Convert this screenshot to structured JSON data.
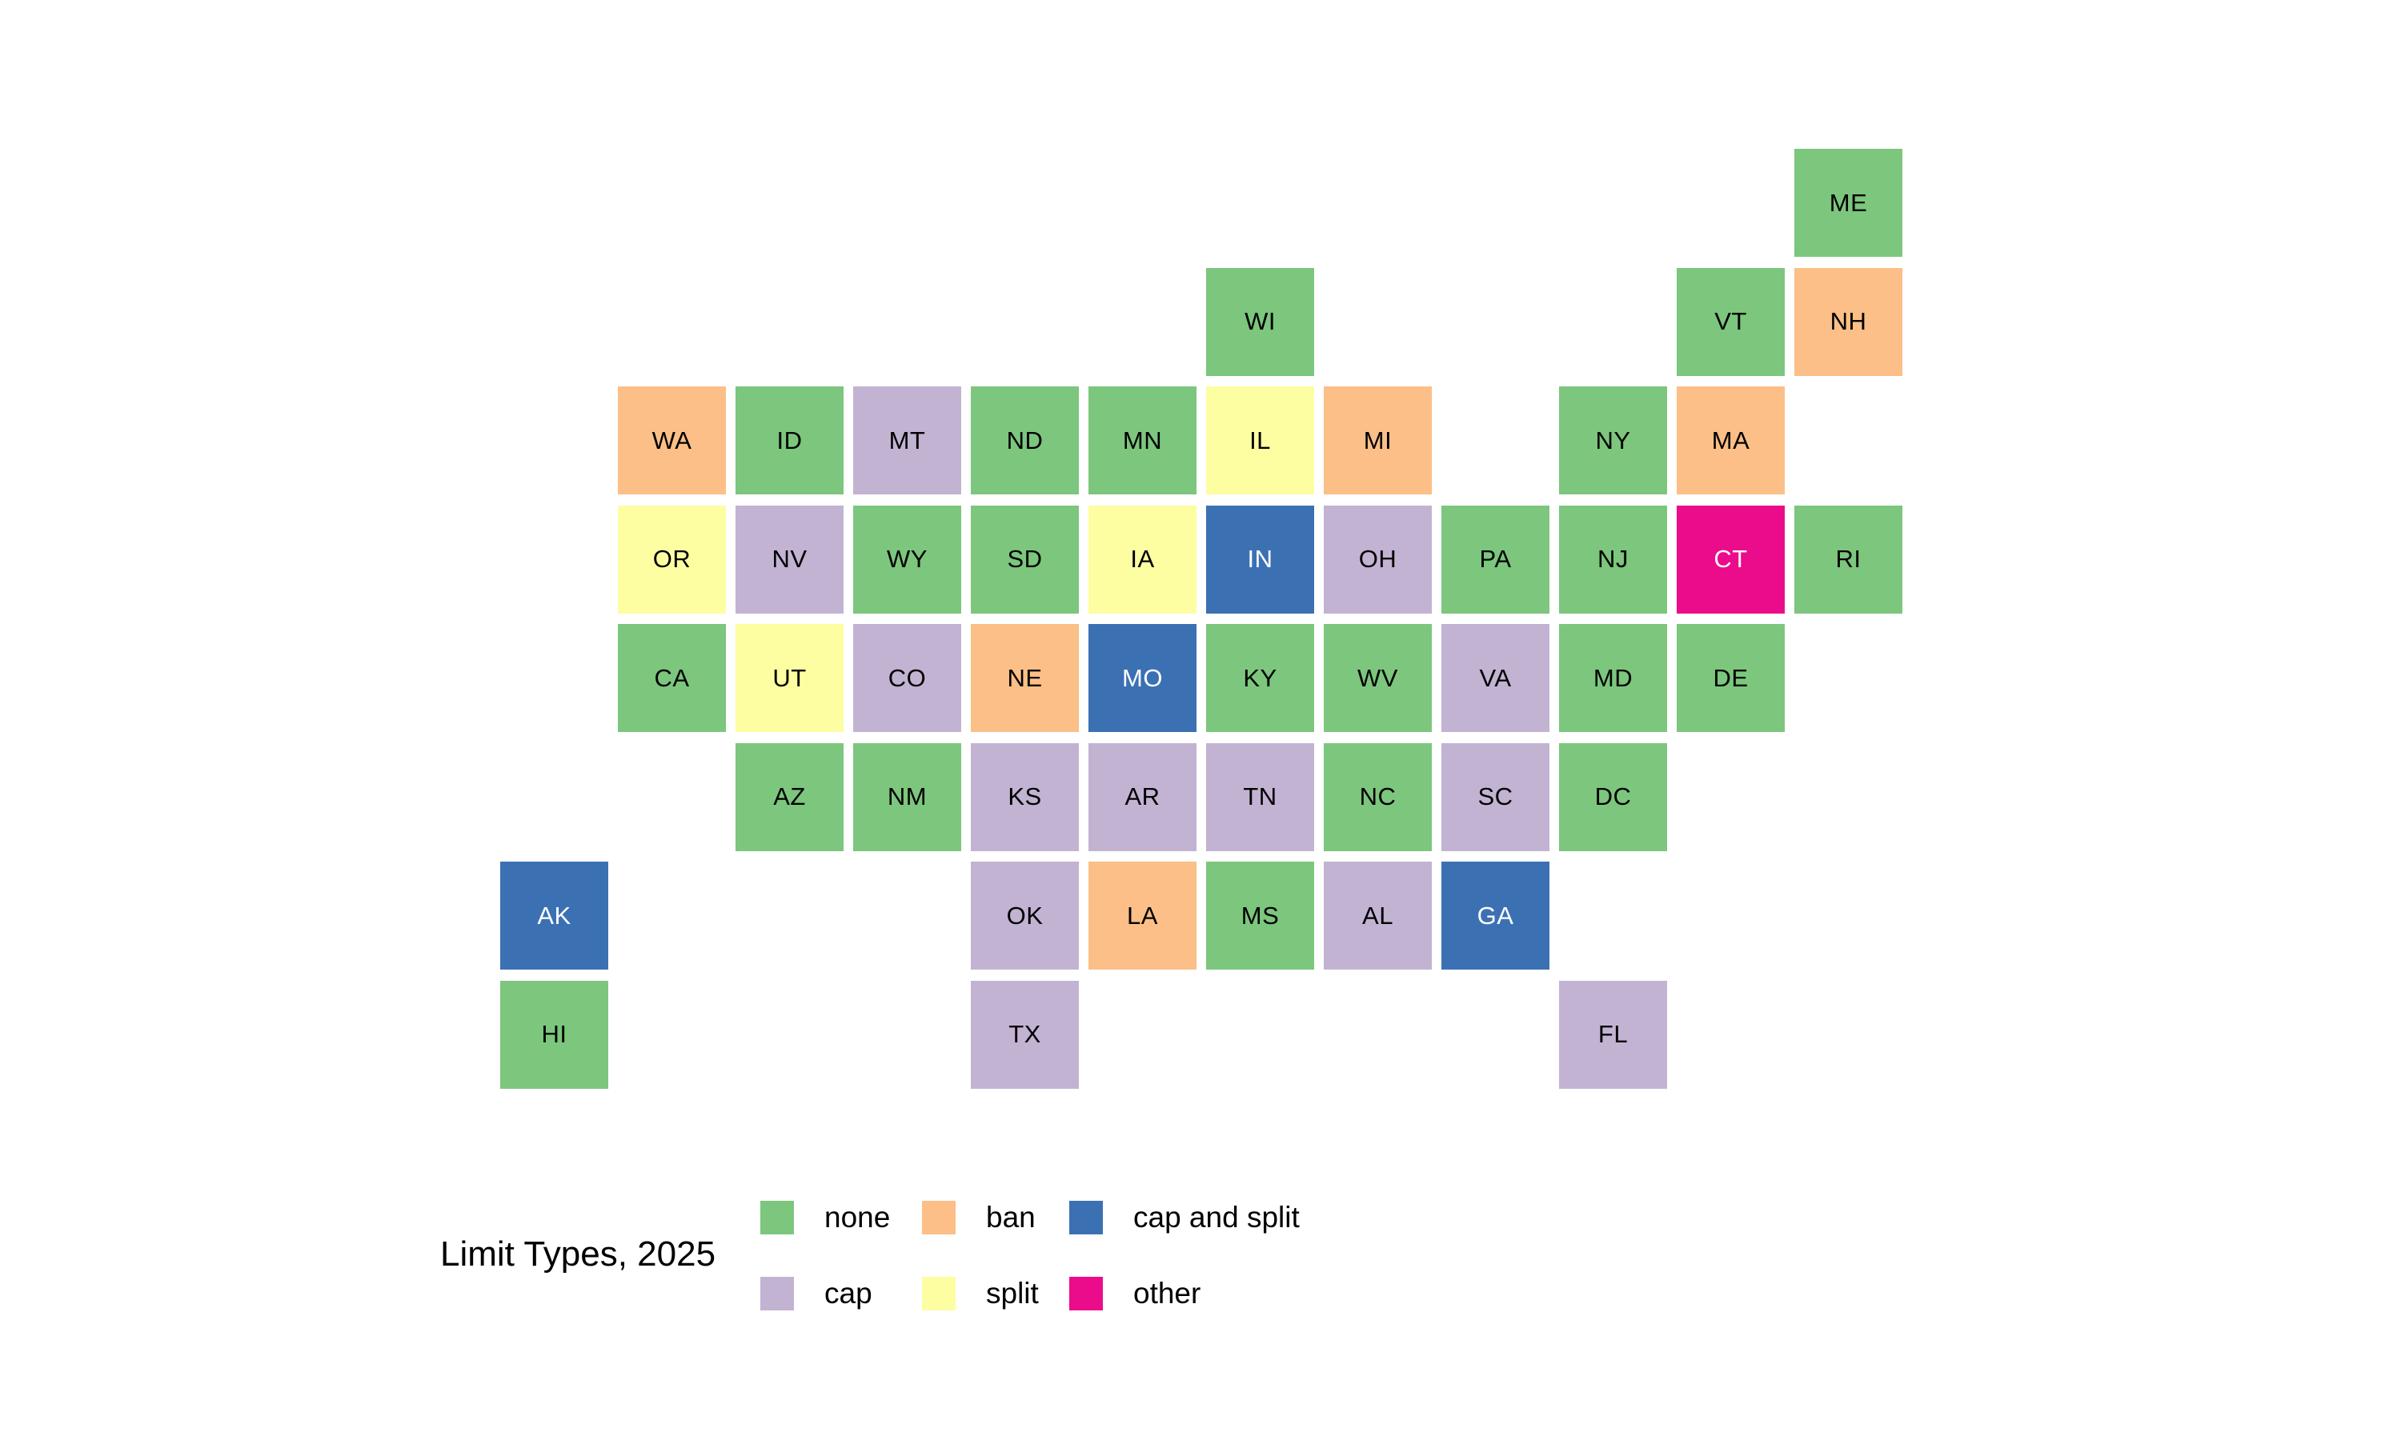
{
  "title": "Limit Types, 2025",
  "chart_data": {
    "type": "heatmap",
    "subtype": "us-state-tile-grid-map",
    "title": "Limit Types, 2025",
    "background": "#ffffff",
    "legend_position": "bottom",
    "legend": [
      {
        "label": "none",
        "color": "#7CC67D",
        "text_color": "#000000"
      },
      {
        "label": "ban",
        "color": "#FBBF87",
        "text_color": "#000000"
      },
      {
        "label": "cap and split",
        "color": "#3B71B3",
        "text_color": "#FFFFFF"
      },
      {
        "label": "cap",
        "color": "#C2B3D3",
        "text_color": "#000000"
      },
      {
        "label": "split",
        "color": "#FDFDA2",
        "text_color": "#000000"
      },
      {
        "label": "other",
        "color": "#EB0C8C",
        "text_color": "#FFFFFF"
      }
    ],
    "states": [
      {
        "abbr": "ME",
        "row": 0,
        "col": 11,
        "category": "none"
      },
      {
        "abbr": "WI",
        "row": 1,
        "col": 6,
        "category": "none"
      },
      {
        "abbr": "VT",
        "row": 1,
        "col": 10,
        "category": "none"
      },
      {
        "abbr": "NH",
        "row": 1,
        "col": 11,
        "category": "ban"
      },
      {
        "abbr": "WA",
        "row": 2,
        "col": 1,
        "category": "ban"
      },
      {
        "abbr": "ID",
        "row": 2,
        "col": 2,
        "category": "none"
      },
      {
        "abbr": "MT",
        "row": 2,
        "col": 3,
        "category": "cap"
      },
      {
        "abbr": "ND",
        "row": 2,
        "col": 4,
        "category": "none"
      },
      {
        "abbr": "MN",
        "row": 2,
        "col": 5,
        "category": "none"
      },
      {
        "abbr": "IL",
        "row": 2,
        "col": 6,
        "category": "split"
      },
      {
        "abbr": "MI",
        "row": 2,
        "col": 7,
        "category": "ban"
      },
      {
        "abbr": "NY",
        "row": 2,
        "col": 9,
        "category": "none"
      },
      {
        "abbr": "MA",
        "row": 2,
        "col": 10,
        "category": "ban"
      },
      {
        "abbr": "OR",
        "row": 3,
        "col": 1,
        "category": "split"
      },
      {
        "abbr": "NV",
        "row": 3,
        "col": 2,
        "category": "cap"
      },
      {
        "abbr": "WY",
        "row": 3,
        "col": 3,
        "category": "none"
      },
      {
        "abbr": "SD",
        "row": 3,
        "col": 4,
        "category": "none"
      },
      {
        "abbr": "IA",
        "row": 3,
        "col": 5,
        "category": "split"
      },
      {
        "abbr": "IN",
        "row": 3,
        "col": 6,
        "category": "cap and split"
      },
      {
        "abbr": "OH",
        "row": 3,
        "col": 7,
        "category": "cap"
      },
      {
        "abbr": "PA",
        "row": 3,
        "col": 8,
        "category": "none"
      },
      {
        "abbr": "NJ",
        "row": 3,
        "col": 9,
        "category": "none"
      },
      {
        "abbr": "CT",
        "row": 3,
        "col": 10,
        "category": "other"
      },
      {
        "abbr": "RI",
        "row": 3,
        "col": 11,
        "category": "none"
      },
      {
        "abbr": "CA",
        "row": 4,
        "col": 1,
        "category": "none"
      },
      {
        "abbr": "UT",
        "row": 4,
        "col": 2,
        "category": "split"
      },
      {
        "abbr": "CO",
        "row": 4,
        "col": 3,
        "category": "cap"
      },
      {
        "abbr": "NE",
        "row": 4,
        "col": 4,
        "category": "ban"
      },
      {
        "abbr": "MO",
        "row": 4,
        "col": 5,
        "category": "cap and split"
      },
      {
        "abbr": "KY",
        "row": 4,
        "col": 6,
        "category": "none"
      },
      {
        "abbr": "WV",
        "row": 4,
        "col": 7,
        "category": "none"
      },
      {
        "abbr": "VA",
        "row": 4,
        "col": 8,
        "category": "cap"
      },
      {
        "abbr": "MD",
        "row": 4,
        "col": 9,
        "category": "none"
      },
      {
        "abbr": "DE",
        "row": 4,
        "col": 10,
        "category": "none"
      },
      {
        "abbr": "AZ",
        "row": 5,
        "col": 2,
        "category": "none"
      },
      {
        "abbr": "NM",
        "row": 5,
        "col": 3,
        "category": "none"
      },
      {
        "abbr": "KS",
        "row": 5,
        "col": 4,
        "category": "cap"
      },
      {
        "abbr": "AR",
        "row": 5,
        "col": 5,
        "category": "cap"
      },
      {
        "abbr": "TN",
        "row": 5,
        "col": 6,
        "category": "cap"
      },
      {
        "abbr": "NC",
        "row": 5,
        "col": 7,
        "category": "none"
      },
      {
        "abbr": "SC",
        "row": 5,
        "col": 8,
        "category": "cap"
      },
      {
        "abbr": "DC",
        "row": 5,
        "col": 9,
        "category": "none"
      },
      {
        "abbr": "AK",
        "row": 6,
        "col": 0,
        "category": "cap and split"
      },
      {
        "abbr": "OK",
        "row": 6,
        "col": 4,
        "category": "cap"
      },
      {
        "abbr": "LA",
        "row": 6,
        "col": 5,
        "category": "ban"
      },
      {
        "abbr": "MS",
        "row": 6,
        "col": 6,
        "category": "none"
      },
      {
        "abbr": "AL",
        "row": 6,
        "col": 7,
        "category": "cap"
      },
      {
        "abbr": "GA",
        "row": 6,
        "col": 8,
        "category": "cap and split"
      },
      {
        "abbr": "HI",
        "row": 7,
        "col": 0,
        "category": "none"
      },
      {
        "abbr": "TX",
        "row": 7,
        "col": 4,
        "category": "cap"
      },
      {
        "abbr": "FL",
        "row": 7,
        "col": 9,
        "category": "cap"
      }
    ],
    "layout_note": "8 rows x 12 columns tile grid"
  }
}
